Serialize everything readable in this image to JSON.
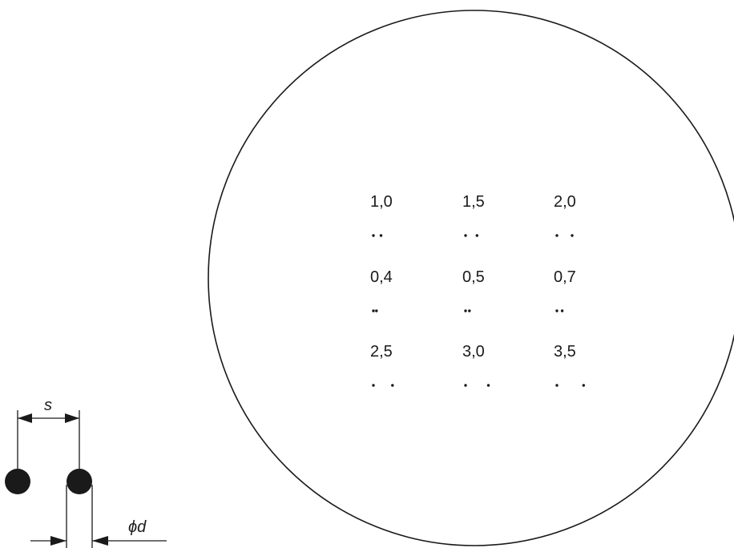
{
  "test_chart": {
    "rows": [
      {
        "items": [
          {
            "label": "1,0",
            "spacing": 1.0
          },
          {
            "label": "1,5",
            "spacing": 1.5
          },
          {
            "label": "2,0",
            "spacing": 2.0
          }
        ]
      },
      {
        "items": [
          {
            "label": "0,4",
            "spacing": 0.4
          },
          {
            "label": "0,5",
            "spacing": 0.5
          },
          {
            "label": "0,7",
            "spacing": 0.7
          }
        ]
      },
      {
        "items": [
          {
            "label": "2,5",
            "spacing": 2.5
          },
          {
            "label": "3,0",
            "spacing": 3.0
          },
          {
            "label": "3,5",
            "spacing": 3.5
          }
        ]
      }
    ]
  },
  "legend": {
    "spacing_label": "s",
    "diameter_label": "ϕd"
  }
}
